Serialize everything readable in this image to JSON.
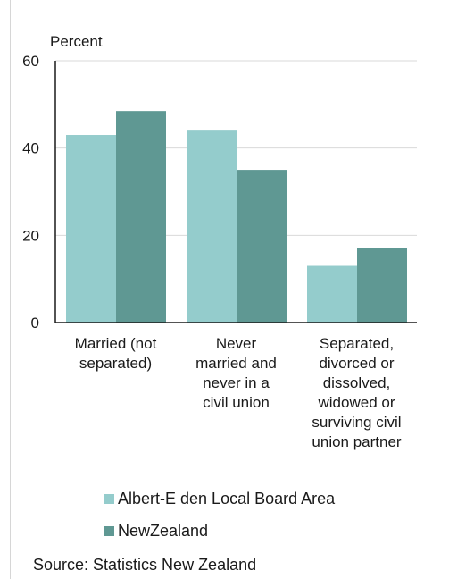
{
  "chart_data": {
    "type": "bar",
    "ylabel": "Percent",
    "ylim": [
      0,
      60
    ],
    "yticks": [
      0,
      20,
      40,
      60
    ],
    "categories": [
      [
        "Married (not",
        "separated)"
      ],
      [
        "Never",
        "married and",
        "never in a",
        "civil union"
      ],
      [
        "Separated,",
        "divorced or",
        "dissolved,",
        "widowed or",
        "surviving civil",
        "union partner"
      ]
    ],
    "series": [
      {
        "name": "Albert-E den Local Board Area",
        "color": "#94cccc",
        "values": [
          43,
          44,
          13
        ]
      },
      {
        "name": "NewZealand",
        "color": "#5f9893",
        "values": [
          48.5,
          35,
          17
        ]
      }
    ],
    "grid": true,
    "legend_position": "bottom"
  },
  "source": "Source: Statistics New Zealand"
}
